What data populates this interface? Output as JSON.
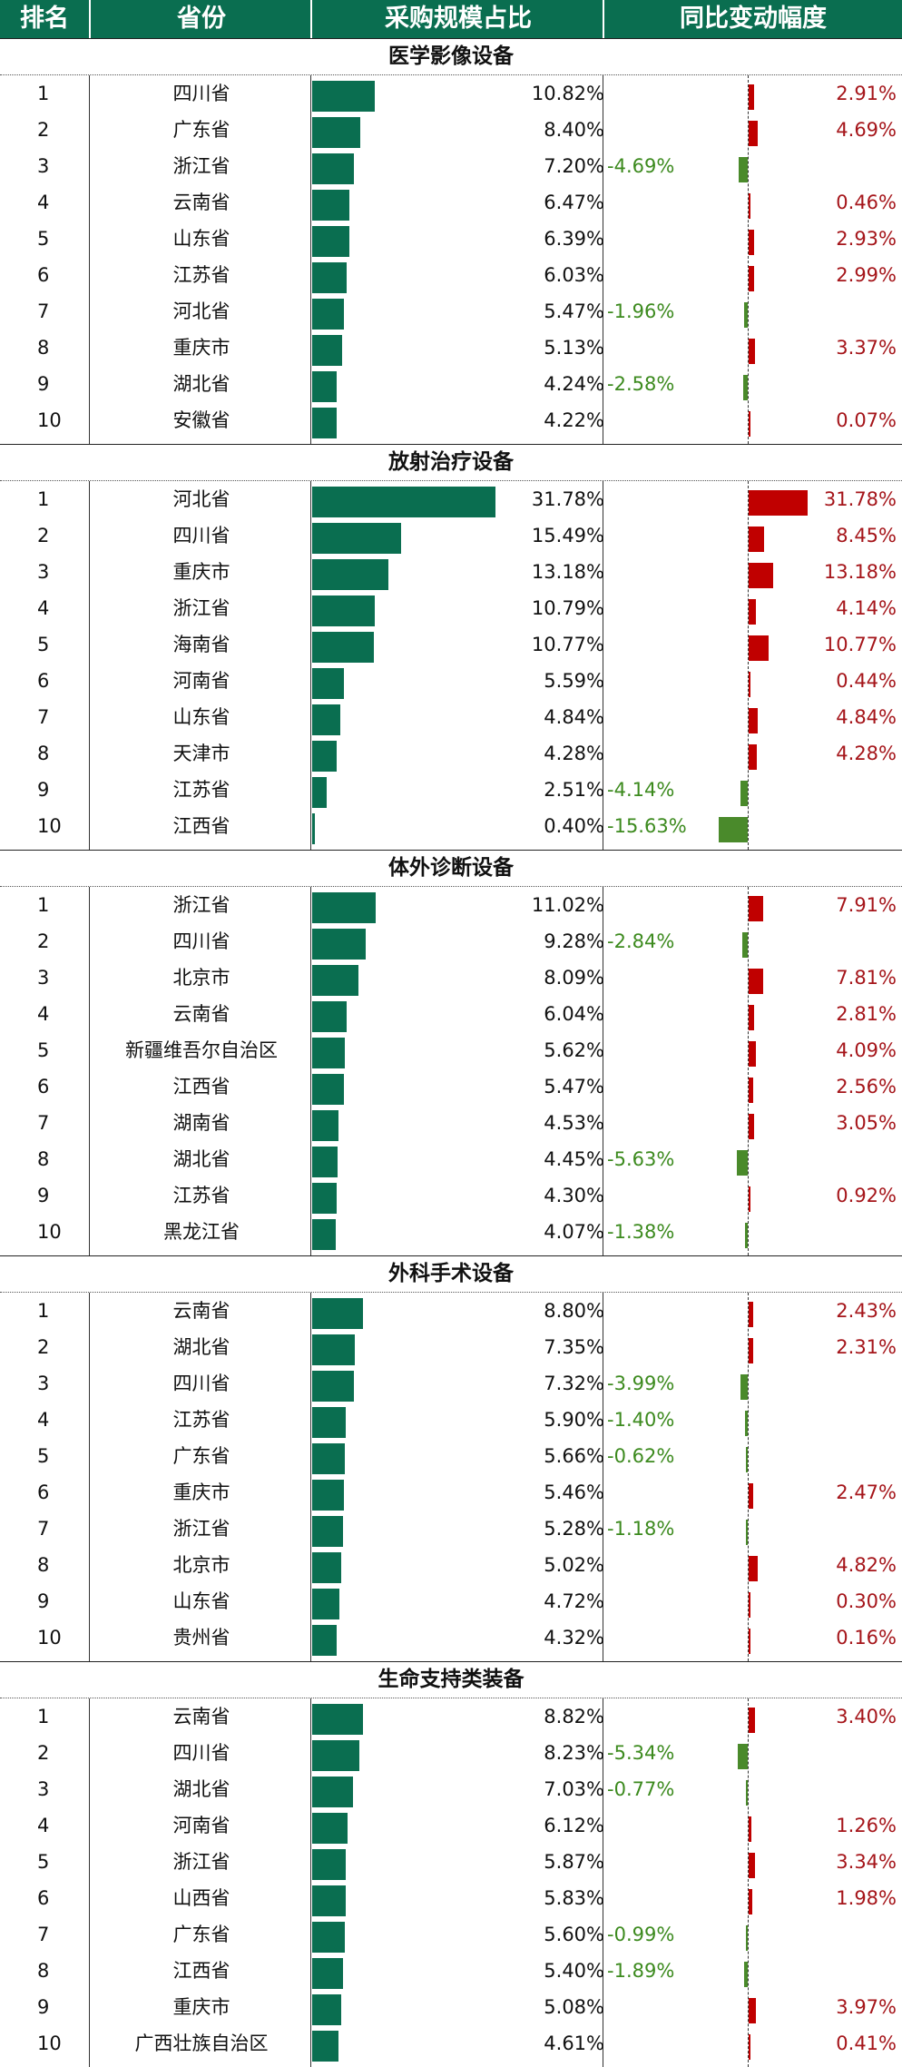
{
  "header": {
    "rank": "排名",
    "province": "省份",
    "share": "采购规模占比",
    "yoy": "同比变动幅度"
  },
  "colors": {
    "header_bg": "#0a6e50",
    "share_bar": "#0a6e50",
    "positive": "#c00000",
    "negative": "#4a8a2b"
  },
  "chart_data": {
    "type": "table",
    "columns": [
      "排名",
      "省份",
      "采购规模占比",
      "同比变动幅度"
    ],
    "sections": [
      {
        "title": "医学影像设备",
        "rows": [
          {
            "rank": "1",
            "province": "四川省",
            "share": 10.82,
            "share_label": "10.82%",
            "yoy": 2.91,
            "yoy_label": "2.91%"
          },
          {
            "rank": "2",
            "province": "广东省",
            "share": 8.4,
            "share_label": "8.40%",
            "yoy": 4.69,
            "yoy_label": "4.69%"
          },
          {
            "rank": "3",
            "province": "浙江省",
            "share": 7.2,
            "share_label": "7.20%",
            "yoy": -4.69,
            "yoy_label": "-4.69%"
          },
          {
            "rank": "4",
            "province": "云南省",
            "share": 6.47,
            "share_label": "6.47%",
            "yoy": 0.46,
            "yoy_label": "0.46%"
          },
          {
            "rank": "5",
            "province": "山东省",
            "share": 6.39,
            "share_label": "6.39%",
            "yoy": 2.93,
            "yoy_label": "2.93%"
          },
          {
            "rank": "6",
            "province": "江苏省",
            "share": 6.03,
            "share_label": "6.03%",
            "yoy": 2.99,
            "yoy_label": "2.99%"
          },
          {
            "rank": "7",
            "province": "河北省",
            "share": 5.47,
            "share_label": "5.47%",
            "yoy": -1.96,
            "yoy_label": "-1.96%"
          },
          {
            "rank": "8",
            "province": "重庆市",
            "share": 5.13,
            "share_label": "5.13%",
            "yoy": 3.37,
            "yoy_label": "3.37%"
          },
          {
            "rank": "9",
            "province": "湖北省",
            "share": 4.24,
            "share_label": "4.24%",
            "yoy": -2.58,
            "yoy_label": "-2.58%"
          },
          {
            "rank": "10",
            "province": "安徽省",
            "share": 4.22,
            "share_label": "4.22%",
            "yoy": 0.07,
            "yoy_label": "0.07%"
          }
        ]
      },
      {
        "title": "放射治疗设备",
        "rows": [
          {
            "rank": "1",
            "province": "河北省",
            "share": 31.78,
            "share_label": "31.78%",
            "yoy": 31.78,
            "yoy_label": "31.78%"
          },
          {
            "rank": "2",
            "province": "四川省",
            "share": 15.49,
            "share_label": "15.49%",
            "yoy": 8.45,
            "yoy_label": "8.45%"
          },
          {
            "rank": "3",
            "province": "重庆市",
            "share": 13.18,
            "share_label": "13.18%",
            "yoy": 13.18,
            "yoy_label": "13.18%"
          },
          {
            "rank": "4",
            "province": "浙江省",
            "share": 10.79,
            "share_label": "10.79%",
            "yoy": 4.14,
            "yoy_label": "4.14%"
          },
          {
            "rank": "5",
            "province": "海南省",
            "share": 10.77,
            "share_label": "10.77%",
            "yoy": 10.77,
            "yoy_label": "10.77%"
          },
          {
            "rank": "6",
            "province": "河南省",
            "share": 5.59,
            "share_label": "5.59%",
            "yoy": 0.44,
            "yoy_label": "0.44%"
          },
          {
            "rank": "7",
            "province": "山东省",
            "share": 4.84,
            "share_label": "4.84%",
            "yoy": 4.84,
            "yoy_label": "4.84%"
          },
          {
            "rank": "8",
            "province": "天津市",
            "share": 4.28,
            "share_label": "4.28%",
            "yoy": 4.28,
            "yoy_label": "4.28%"
          },
          {
            "rank": "9",
            "province": "江苏省",
            "share": 2.51,
            "share_label": "2.51%",
            "yoy": -4.14,
            "yoy_label": "-4.14%"
          },
          {
            "rank": "10",
            "province": "江西省",
            "share": 0.4,
            "share_label": "0.40%",
            "yoy": -15.63,
            "yoy_label": "-15.63%"
          }
        ]
      },
      {
        "title": "体外诊断设备",
        "rows": [
          {
            "rank": "1",
            "province": "浙江省",
            "share": 11.02,
            "share_label": "11.02%",
            "yoy": 7.91,
            "yoy_label": "7.91%"
          },
          {
            "rank": "2",
            "province": "四川省",
            "share": 9.28,
            "share_label": "9.28%",
            "yoy": -2.84,
            "yoy_label": "-2.84%"
          },
          {
            "rank": "3",
            "province": "北京市",
            "share": 8.09,
            "share_label": "8.09%",
            "yoy": 7.81,
            "yoy_label": "7.81%"
          },
          {
            "rank": "4",
            "province": "云南省",
            "share": 6.04,
            "share_label": "6.04%",
            "yoy": 2.81,
            "yoy_label": "2.81%"
          },
          {
            "rank": "5",
            "province": "新疆维吾尔自治区",
            "share": 5.62,
            "share_label": "5.62%",
            "yoy": 4.09,
            "yoy_label": "4.09%"
          },
          {
            "rank": "6",
            "province": "江西省",
            "share": 5.47,
            "share_label": "5.47%",
            "yoy": 2.56,
            "yoy_label": "2.56%"
          },
          {
            "rank": "7",
            "province": "湖南省",
            "share": 4.53,
            "share_label": "4.53%",
            "yoy": 3.05,
            "yoy_label": "3.05%"
          },
          {
            "rank": "8",
            "province": "湖北省",
            "share": 4.45,
            "share_label": "4.45%",
            "yoy": -5.63,
            "yoy_label": "-5.63%"
          },
          {
            "rank": "9",
            "province": "江苏省",
            "share": 4.3,
            "share_label": "4.30%",
            "yoy": 0.92,
            "yoy_label": "0.92%"
          },
          {
            "rank": "10",
            "province": "黑龙江省",
            "share": 4.07,
            "share_label": "4.07%",
            "yoy": -1.38,
            "yoy_label": "-1.38%"
          }
        ]
      },
      {
        "title": "外科手术设备",
        "rows": [
          {
            "rank": "1",
            "province": "云南省",
            "share": 8.8,
            "share_label": "8.80%",
            "yoy": 2.43,
            "yoy_label": "2.43%"
          },
          {
            "rank": "2",
            "province": "湖北省",
            "share": 7.35,
            "share_label": "7.35%",
            "yoy": 2.31,
            "yoy_label": "2.31%"
          },
          {
            "rank": "3",
            "province": "四川省",
            "share": 7.32,
            "share_label": "7.32%",
            "yoy": -3.99,
            "yoy_label": "-3.99%"
          },
          {
            "rank": "4",
            "province": "江苏省",
            "share": 5.9,
            "share_label": "5.90%",
            "yoy": -1.4,
            "yoy_label": "-1.40%"
          },
          {
            "rank": "5",
            "province": "广东省",
            "share": 5.66,
            "share_label": "5.66%",
            "yoy": -0.62,
            "yoy_label": "-0.62%"
          },
          {
            "rank": "6",
            "province": "重庆市",
            "share": 5.46,
            "share_label": "5.46%",
            "yoy": 2.47,
            "yoy_label": "2.47%"
          },
          {
            "rank": "7",
            "province": "浙江省",
            "share": 5.28,
            "share_label": "5.28%",
            "yoy": -1.18,
            "yoy_label": "-1.18%"
          },
          {
            "rank": "8",
            "province": "北京市",
            "share": 5.02,
            "share_label": "5.02%",
            "yoy": 4.82,
            "yoy_label": "4.82%"
          },
          {
            "rank": "9",
            "province": "山东省",
            "share": 4.72,
            "share_label": "4.72%",
            "yoy": 0.3,
            "yoy_label": "0.30%"
          },
          {
            "rank": "10",
            "province": "贵州省",
            "share": 4.32,
            "share_label": "4.32%",
            "yoy": 0.16,
            "yoy_label": "0.16%"
          }
        ]
      },
      {
        "title": "生命支持类装备",
        "rows": [
          {
            "rank": "1",
            "province": "云南省",
            "share": 8.82,
            "share_label": "8.82%",
            "yoy": 3.4,
            "yoy_label": "3.40%"
          },
          {
            "rank": "2",
            "province": "四川省",
            "share": 8.23,
            "share_label": "8.23%",
            "yoy": -5.34,
            "yoy_label": "-5.34%"
          },
          {
            "rank": "3",
            "province": "湖北省",
            "share": 7.03,
            "share_label": "7.03%",
            "yoy": -0.77,
            "yoy_label": "-0.77%"
          },
          {
            "rank": "4",
            "province": "河南省",
            "share": 6.12,
            "share_label": "6.12%",
            "yoy": 1.26,
            "yoy_label": "1.26%"
          },
          {
            "rank": "5",
            "province": "浙江省",
            "share": 5.87,
            "share_label": "5.87%",
            "yoy": 3.34,
            "yoy_label": "3.34%"
          },
          {
            "rank": "6",
            "province": "山西省",
            "share": 5.83,
            "share_label": "5.83%",
            "yoy": 1.98,
            "yoy_label": "1.98%"
          },
          {
            "rank": "7",
            "province": "广东省",
            "share": 5.6,
            "share_label": "5.60%",
            "yoy": -0.99,
            "yoy_label": "-0.99%"
          },
          {
            "rank": "8",
            "province": "江西省",
            "share": 5.4,
            "share_label": "5.40%",
            "yoy": -1.89,
            "yoy_label": "-1.89%"
          },
          {
            "rank": "9",
            "province": "重庆市",
            "share": 5.08,
            "share_label": "5.08%",
            "yoy": 3.97,
            "yoy_label": "3.97%"
          },
          {
            "rank": "10",
            "province": "广西壮族自治区",
            "share": 4.61,
            "share_label": "4.61%",
            "yoy": 0.41,
            "yoy_label": "0.41%"
          }
        ]
      }
    ]
  }
}
